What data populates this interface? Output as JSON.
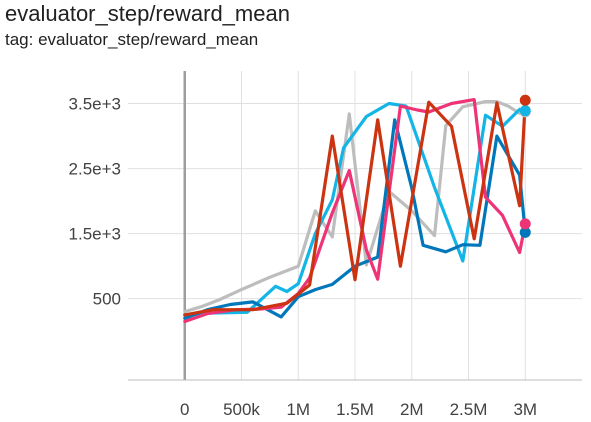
{
  "card": {
    "title": "evaluator_step/reward_mean",
    "tag": "tag: evaluator_step/reward_mean"
  },
  "chart_data": {
    "type": "line",
    "title": "evaluator_step/reward_mean",
    "xlabel": "",
    "ylabel": "",
    "xlim": [
      -500000,
      3500000
    ],
    "ylim": [
      -750,
      4000
    ],
    "x_ticks": [
      {
        "value": 0,
        "label": "0"
      },
      {
        "value": 500000,
        "label": "500k"
      },
      {
        "value": 1000000,
        "label": "1M"
      },
      {
        "value": 1500000,
        "label": "1.5M"
      },
      {
        "value": 2000000,
        "label": "2M"
      },
      {
        "value": 2500000,
        "label": "2.5M"
      },
      {
        "value": 3000000,
        "label": "3M"
      }
    ],
    "y_ticks": [
      {
        "value": 500,
        "label": "500"
      },
      {
        "value": 1500,
        "label": "1.5e+3"
      },
      {
        "value": 2500,
        "label": "2.5e+3"
      },
      {
        "value": 3500,
        "label": "3.5e+3"
      }
    ],
    "grid": true,
    "legend": "none",
    "series": [
      {
        "color": "#bdbdbd",
        "x": [
          0,
          150000,
          300000,
          500000,
          750000,
          1000000,
          1150000,
          1300000,
          1450000,
          1600000,
          1800000,
          2000000,
          2200000,
          2300000,
          2450000,
          2650000,
          2750000,
          2850000,
          2950000,
          3000000
        ],
        "y": [
          300,
          380,
          480,
          640,
          830,
          1000,
          1850,
          1450,
          3340,
          1020,
          2150,
          1850,
          1470,
          3160,
          3450,
          3530,
          3530,
          3460,
          3350,
          3370
        ],
        "end_marker": true
      },
      {
        "color": "#12b5e5",
        "x": [
          0,
          250000,
          550000,
          800000,
          900000,
          1000000,
          1150000,
          1300000,
          1400000,
          1600000,
          1800000,
          1950000,
          2200000,
          2450000,
          2650000,
          2800000,
          2950000,
          3000000
        ],
        "y": [
          250,
          280,
          290,
          690,
          610,
          730,
          1500,
          2020,
          2820,
          3300,
          3500,
          3460,
          2210,
          1080,
          3320,
          3150,
          3410,
          3390
        ],
        "end_marker": true
      },
      {
        "color": "#0077bb",
        "x": [
          0,
          200000,
          400000,
          600000,
          850000,
          1000000,
          1150000,
          1300000,
          1500000,
          1700000,
          1850000,
          2000000,
          2100000,
          2300000,
          2450000,
          2600000,
          2750000,
          2950000,
          3000000
        ],
        "y": [
          200,
          330,
          410,
          450,
          220,
          530,
          640,
          720,
          1000,
          1140,
          3250,
          2200,
          1320,
          1220,
          1330,
          1320,
          3000,
          2400,
          1520
        ],
        "end_marker": true
      },
      {
        "color": "#ee3377",
        "x": [
          0,
          200000,
          450000,
          650000,
          850000,
          1000000,
          1100000,
          1300000,
          1450000,
          1600000,
          1700000,
          1900000,
          2050000,
          2150000,
          2350000,
          2550000,
          2650000,
          2800000,
          2950000,
          3000000
        ],
        "y": [
          150,
          270,
          330,
          340,
          370,
          580,
          820,
          1820,
          2470,
          1250,
          800,
          3460,
          3400,
          3370,
          3500,
          3560,
          2060,
          1780,
          1210,
          1650
        ],
        "end_marker": true
      },
      {
        "color": "#cc3311",
        "x": [
          0,
          250000,
          600000,
          900000,
          1100000,
          1300000,
          1500000,
          1700000,
          1900000,
          2150000,
          2350000,
          2550000,
          2750000,
          2950000,
          3000000
        ],
        "y": [
          250,
          330,
          330,
          430,
          710,
          3000,
          790,
          3250,
          1000,
          3520,
          3150,
          1420,
          3510,
          1930,
          3550
        ],
        "end_marker": true
      }
    ]
  }
}
